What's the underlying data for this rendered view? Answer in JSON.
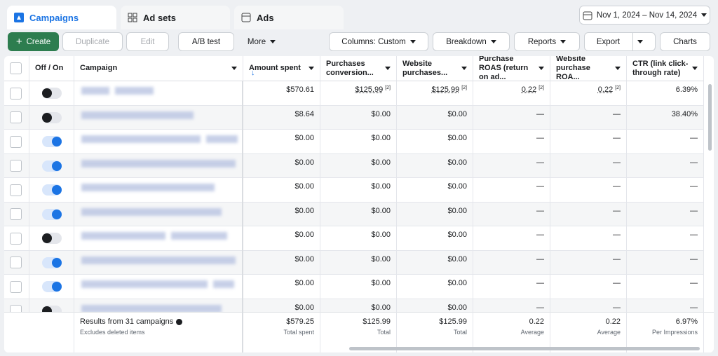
{
  "tabs": [
    "Campaigns",
    "Ad sets",
    "Ads"
  ],
  "date_range": "Nov 1, 2024 – Nov 14, 2024",
  "toolbar": {
    "create": "Create",
    "duplicate": "Duplicate",
    "edit": "Edit",
    "ab_test": "A/B test",
    "more": "More",
    "columns": "Columns: Custom",
    "breakdown": "Breakdown",
    "reports": "Reports",
    "export": "Export",
    "charts": "Charts"
  },
  "table": {
    "headers": [
      "Off / On",
      "Campaign",
      "Amount spent",
      "Purchases conversion...",
      "Website purchases...",
      "Purchase ROAS (return on ad...",
      "Website purchase ROA...",
      "CTR (link click-through rate)"
    ],
    "rows": [
      {
        "on": false,
        "cells": [
          "$570.61",
          {
            "value": "$125.99",
            "note": "[2]"
          },
          {
            "value": "$125.99",
            "note": "[2]"
          },
          {
            "value": "0.22",
            "note": "[2]"
          },
          {
            "value": "0.22",
            "note": "[2]"
          },
          "6.39%"
        ]
      },
      {
        "on": false,
        "cells": [
          "$8.64",
          "$0.00",
          "$0.00",
          "—",
          "—",
          "38.40%"
        ]
      },
      {
        "on": true,
        "cells": [
          "$0.00",
          "$0.00",
          "$0.00",
          "—",
          "—",
          "—"
        ]
      },
      {
        "on": true,
        "cells": [
          "$0.00",
          "$0.00",
          "$0.00",
          "—",
          "—",
          "—"
        ]
      },
      {
        "on": true,
        "cells": [
          "$0.00",
          "$0.00",
          "$0.00",
          "—",
          "—",
          "—"
        ]
      },
      {
        "on": true,
        "cells": [
          "$0.00",
          "$0.00",
          "$0.00",
          "—",
          "—",
          "—"
        ]
      },
      {
        "on": false,
        "cells": [
          "$0.00",
          "$0.00",
          "$0.00",
          "—",
          "—",
          "—"
        ]
      },
      {
        "on": true,
        "cells": [
          "$0.00",
          "$0.00",
          "$0.00",
          "—",
          "—",
          "—"
        ]
      },
      {
        "on": true,
        "cells": [
          "$0.00",
          "$0.00",
          "$0.00",
          "—",
          "—",
          "—"
        ]
      },
      {
        "on": false,
        "cells": [
          "$0.00",
          "$0.00",
          "$0.00",
          "—",
          "—",
          "—"
        ]
      }
    ],
    "footer": {
      "results": "Results from 31 campaigns",
      "note": "Excludes deleted items",
      "totals": [
        {
          "value": "$579.25",
          "label": "Total spent"
        },
        {
          "value": "$125.99",
          "label": "Total"
        },
        {
          "value": "$125.99",
          "label": "Total"
        },
        {
          "value": "0.22",
          "label": "Average"
        },
        {
          "value": "0.22",
          "label": "Average"
        },
        {
          "value": "6.97%",
          "label": "Per Impressions"
        }
      ]
    }
  }
}
